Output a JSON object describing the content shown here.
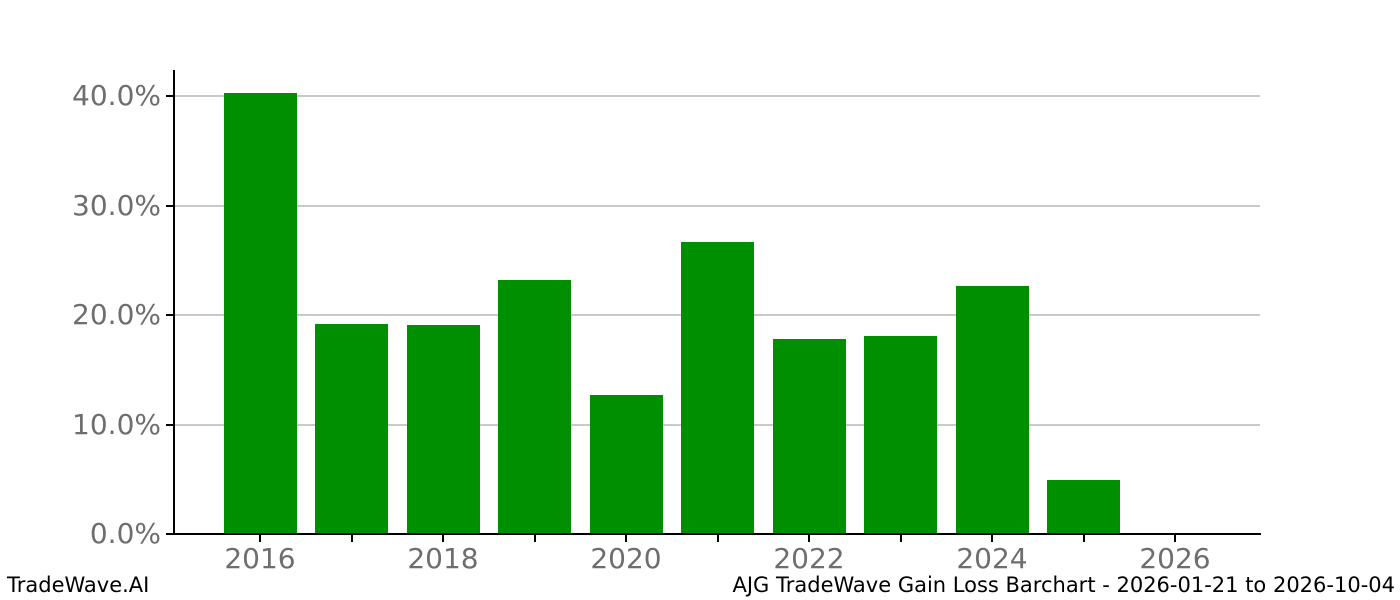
{
  "footer": {
    "left": "TradeWave.AI",
    "right": "AJG TradeWave Gain Loss Barchart - 2026-01-21 to 2026-10-04"
  },
  "chart_data": {
    "type": "bar",
    "title": "",
    "xlabel": "",
    "ylabel": "",
    "categories": [
      "2016",
      "2017",
      "2018",
      "2019",
      "2020",
      "2021",
      "2022",
      "2023",
      "2024",
      "2025"
    ],
    "values": [
      40.3,
      19.2,
      19.1,
      23.2,
      12.7,
      26.7,
      17.8,
      18.1,
      22.7,
      4.9
    ],
    "unit": "%",
    "ylim": [
      0,
      42.4
    ],
    "yticks": [
      0,
      10,
      20,
      30,
      40
    ],
    "ytick_labels": [
      "0.0%",
      "10.0%",
      "20.0%",
      "30.0%",
      "40.0%"
    ],
    "xtick_years": [
      2016,
      2017,
      2018,
      2019,
      2020,
      2021,
      2022,
      2023,
      2024,
      2025,
      2026
    ],
    "xtick_labels": [
      {
        "year": 2016,
        "label": "2016"
      },
      {
        "year": 2018,
        "label": "2018"
      },
      {
        "year": 2020,
        "label": "2020"
      },
      {
        "year": 2022,
        "label": "2022"
      },
      {
        "year": 2024,
        "label": "2024"
      },
      {
        "year": 2026,
        "label": "2026"
      }
    ],
    "grid": true,
    "legend": null,
    "colors": {
      "bar": "#008f00",
      "gridline": "#c9c9c9",
      "axis": "#000000",
      "tick_label": "#6e6e6e",
      "footer_text": "#000000",
      "background": "#ffffff"
    }
  }
}
